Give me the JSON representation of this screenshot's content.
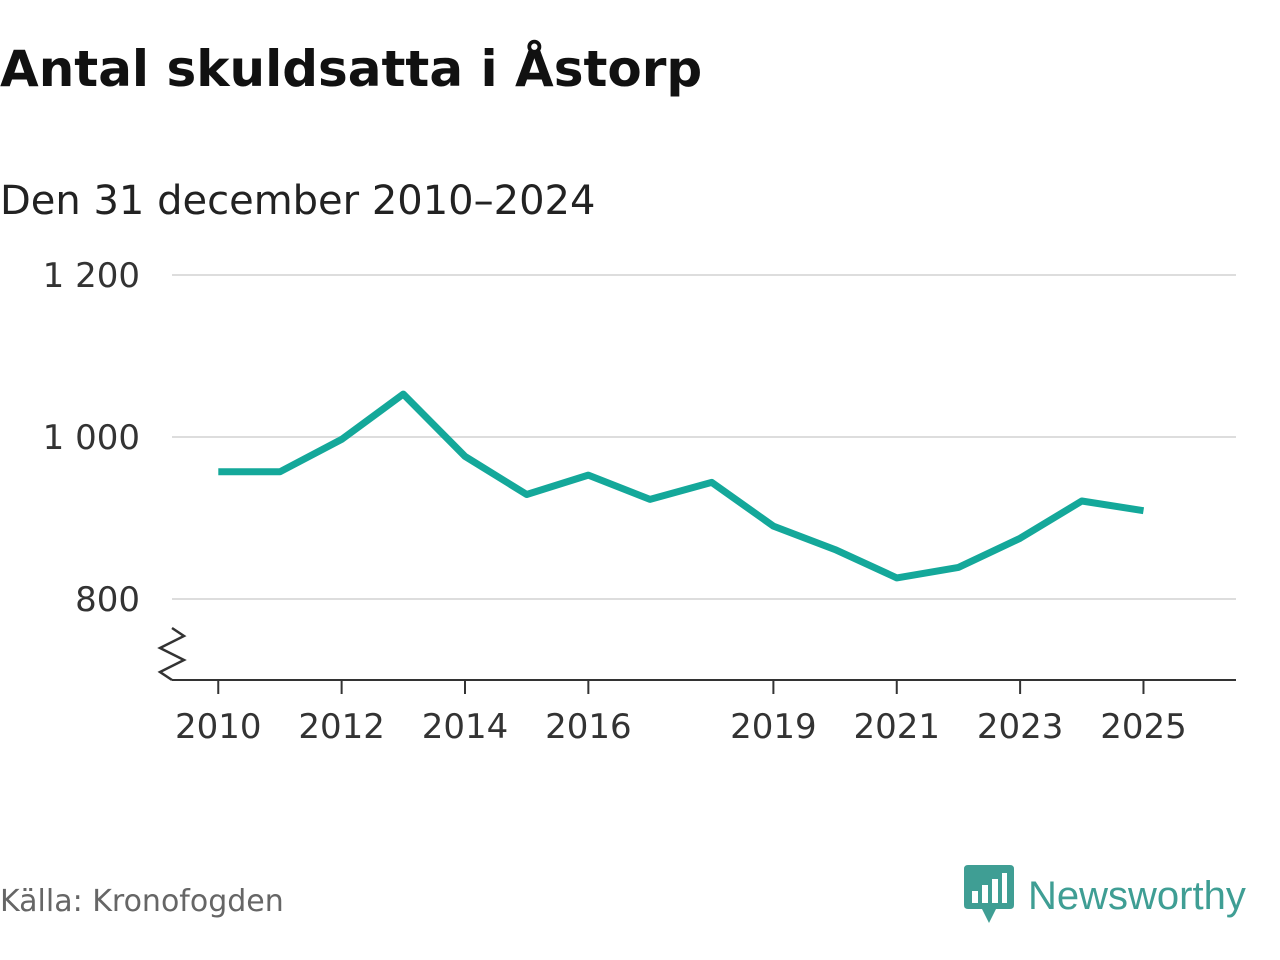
{
  "title": "Antal skuldsatta i Åstorp",
  "subtitle": "Den 31 december 2010–2024",
  "source": "Källa: Kronofogden",
  "brand": {
    "name": "Newsworthy",
    "icon": "newsworthy-logo-icon",
    "color": "#2a9d8f"
  },
  "colors": {
    "line": "#14a89a",
    "grid": "#dddddd",
    "axis": "#333333"
  },
  "chart_data": {
    "type": "line",
    "title": "Antal skuldsatta i Åstorp",
    "subtitle": "Den 31 december 2010–2024",
    "xlabel": "",
    "ylabel": "",
    "x": [
      2010,
      2011,
      2012,
      2013,
      2014,
      2015,
      2016,
      2017,
      2018,
      2019,
      2020,
      2021,
      2022,
      2023,
      2024,
      2025
    ],
    "series": [
      {
        "name": "Antal skuldsatta",
        "values": [
          957,
          957,
          997,
          1053,
          976,
          929,
          953,
          923,
          944,
          890,
          861,
          826,
          839,
          875,
          921,
          909
        ]
      }
    ],
    "xlim": [
      2009.25,
      2026.5
    ],
    "ylim": [
      700,
      1200
    ],
    "xticks": [
      2010,
      2012,
      2014,
      2016,
      2019,
      2021,
      2023,
      2025
    ],
    "xtick_labels": [
      "2010",
      "2012",
      "2014",
      "2016",
      "2019",
      "2021",
      "2023",
      "2025"
    ],
    "yticks": [
      800,
      1000,
      1200
    ],
    "ytick_labels": [
      "800",
      "1 000",
      "1 200"
    ],
    "axis_break": true,
    "grid": true,
    "legend": "none"
  }
}
